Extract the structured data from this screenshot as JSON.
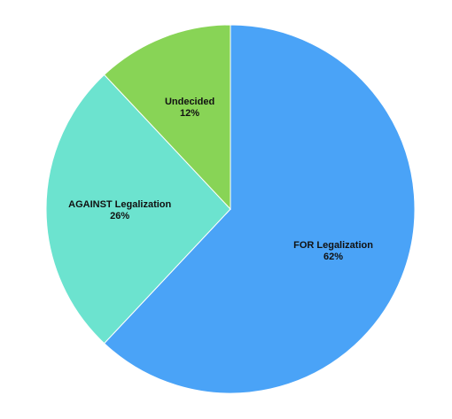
{
  "chart_data": {
    "type": "pie",
    "title": "",
    "slices": [
      {
        "label": "FOR Legalization",
        "value": 62,
        "display": "62%",
        "color": "#4aa3f7"
      },
      {
        "label": "AGAINST Legalization",
        "value": 26,
        "display": "26%",
        "color": "#6ce3cf"
      },
      {
        "label": "Undecided",
        "value": 12,
        "display": "12%",
        "color": "#88d456"
      }
    ],
    "start": "top",
    "direction": "clockwise",
    "legend": "none"
  }
}
